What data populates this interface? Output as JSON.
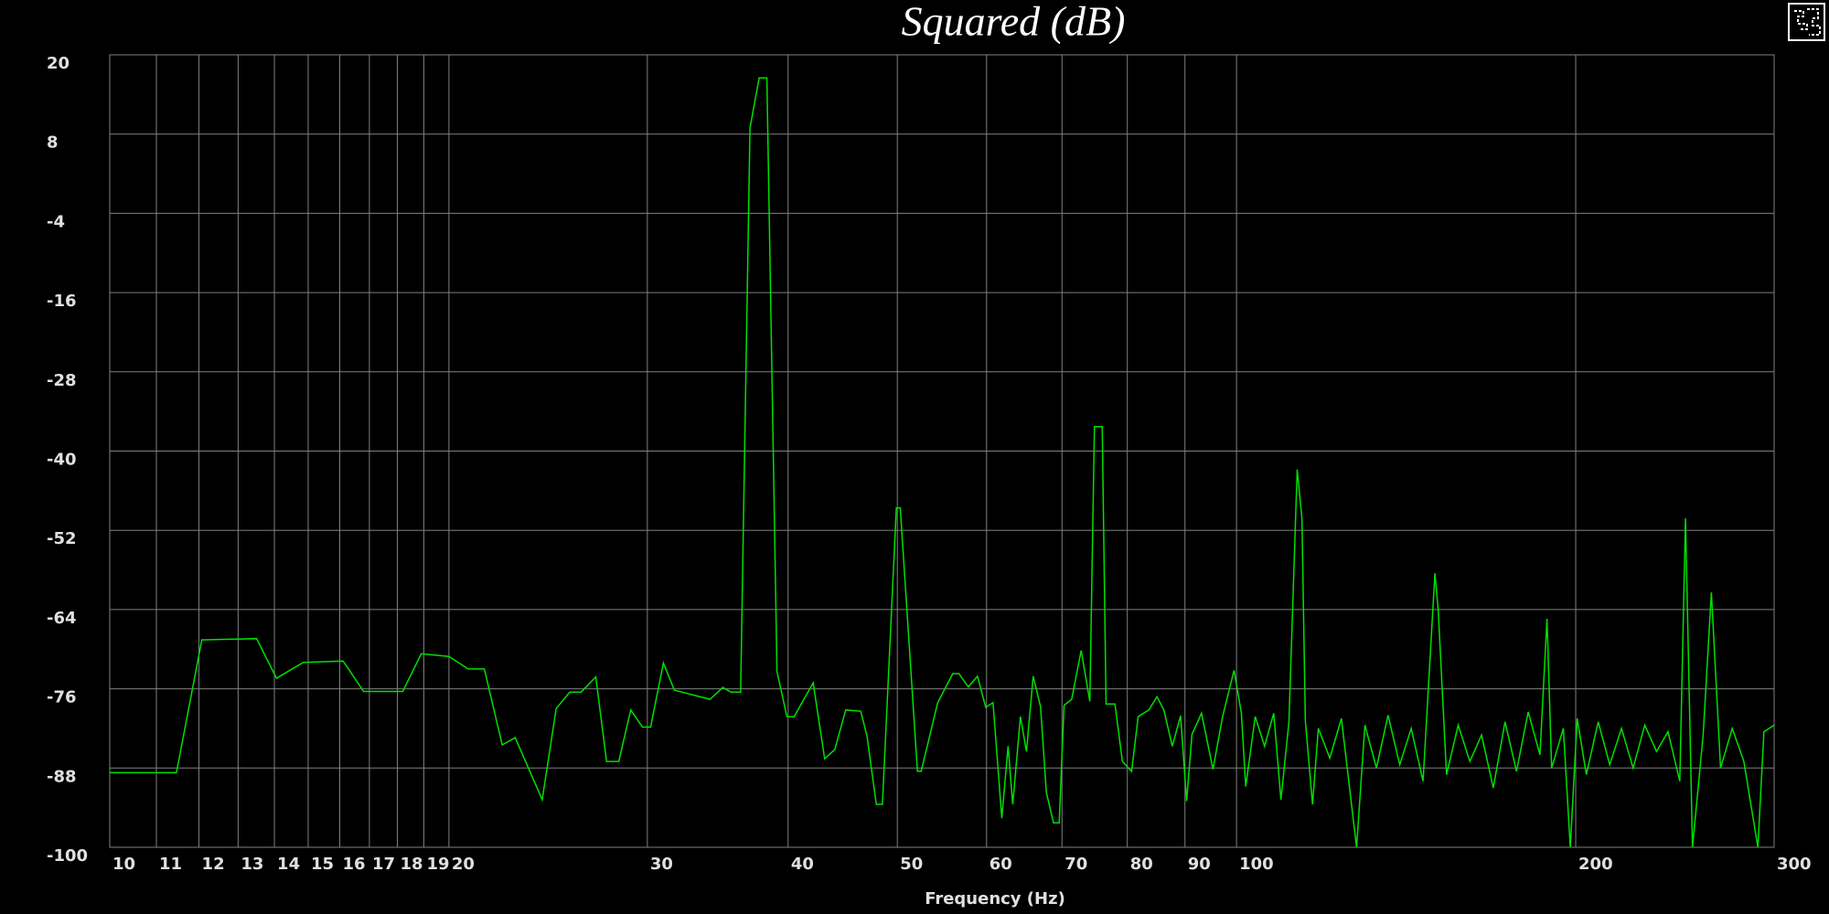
{
  "chart_data": {
    "type": "line",
    "title": "Squared (dB)",
    "x_label": "Frequency (Hz)",
    "x": [
      10,
      11.46,
      12.07,
      13.5,
      14.06,
      14.85,
      16.11,
      16.8,
      18.2,
      18.9,
      20.0,
      20.8,
      21.5,
      22.3,
      22.9,
      24.2,
      24.9,
      25.6,
      26.2,
      27.0,
      27.6,
      28.3,
      29.0,
      29.7,
      30.2,
      31.0,
      31.7,
      34.1,
      35.0,
      35.6,
      36.3,
      37.0,
      37.7,
      38.3,
      39.1,
      39.9,
      40.5,
      42.1,
      43.1,
      44.0,
      45.0,
      46.4,
      47.0,
      47.9,
      48.5,
      49.9,
      50.3,
      52.1,
      52.5,
      54.3,
      56.0,
      56.7,
      57.8,
      58.9,
      59.9,
      60.8,
      61.9,
      62.7,
      63.3,
      64.3,
      65.1,
      66.0,
      67.0,
      67.8,
      68.8,
      69.6,
      70.3,
      71.4,
      72.8,
      74.1,
      74.8,
      76.0,
      76.6,
      78.0,
      79.2,
      80.7,
      81.8,
      83.6,
      85.0,
      86.2,
      87.7,
      89.2,
      90.3,
      91.3,
      93.1,
      95.3,
      97.2,
      99.5,
      101.0,
      101.9,
      103.9,
      105.9,
      107.9,
      109.5,
      111.3,
      113.2,
      114.3,
      115.1,
      116.8,
      118.2,
      121.0,
      123.9,
      127.8,
      130.0,
      133.1,
      136.3,
      139.6,
      142.9,
      146.4,
      150.0,
      151.0,
      153.6,
      157.3,
      161.1,
      165.0,
      169.0,
      173.1,
      177.2,
      181.5,
      185.9,
      188.6,
      190.4,
      195.0,
      197.8,
      200.6,
      204.4,
      209.4,
      214.4,
      219.6,
      224.9,
      230.3,
      235.9,
      241.5,
      247.4,
      250.3,
      253.9,
      259.5,
      263.9,
      268.9,
      275.4,
      282.0,
      290.2,
      293.8,
      300
    ],
    "values": [
      -88.7,
      -88.7,
      -68.6,
      -68.4,
      -74.4,
      -72.0,
      -71.8,
      -76.4,
      -76.4,
      -70.7,
      -71.1,
      -73.0,
      -73.0,
      -84.5,
      -83.4,
      -92.8,
      -79.0,
      -76.5,
      -76.5,
      -74.2,
      -87.0,
      -87.0,
      -79.2,
      -81.8,
      -81.8,
      -72.1,
      -76.2,
      -77.6,
      -75.8,
      -76.5,
      -76.5,
      8.9,
      16.5,
      16.5,
      -73.4,
      -80.2,
      -80.2,
      -75.1,
      -86.6,
      -85.2,
      -79.2,
      -79.4,
      -83.2,
      -93.5,
      -93.5,
      -48.6,
      -48.6,
      -88.5,
      -88.5,
      -78.1,
      -73.7,
      -73.7,
      -75.7,
      -74.1,
      -78.8,
      -78.1,
      -95.6,
      -84.7,
      -93.5,
      -80.2,
      -85.5,
      -74.1,
      -78.7,
      -91.7,
      -96.3,
      -96.3,
      -78.5,
      -77.6,
      -70.2,
      -77.9,
      -36.3,
      -36.3,
      -78.3,
      -78.3,
      -87.0,
      -88.5,
      -80.2,
      -79.2,
      -77.2,
      -79.2,
      -84.7,
      -80.1,
      -93.0,
      -82.9,
      -79.7,
      -88.2,
      -80.2,
      -73.2,
      -79.7,
      -90.8,
      -80.2,
      -84.7,
      -79.7,
      -92.8,
      -81.1,
      -42.8,
      -50.2,
      -80.8,
      -93.5,
      -82.0,
      -86.5,
      -80.5,
      -100,
      -81.5,
      -88.0,
      -80.0,
      -87.5,
      -82.0,
      -90.0,
      -58.5,
      -64.0,
      -89.0,
      -81.5,
      -87.0,
      -83.0,
      -91.0,
      -81.0,
      -88.5,
      -79.5,
      -86.0,
      -65.4,
      -88.0,
      -82.0,
      -100,
      -80.5,
      -89.0,
      -81.0,
      -87.5,
      -82.0,
      -88.0,
      -81.5,
      -85.5,
      -82.5,
      -90.0,
      -50.2,
      -100,
      -83.0,
      -61.4,
      -88.0,
      -82.0,
      -87.0,
      -100,
      -82.5,
      -81.5
    ],
    "color": "#00e000",
    "grid_color": "#808080",
    "log_x": true,
    "grid": true,
    "xlim": [
      10,
      300
    ],
    "xticks": [
      10,
      11,
      12,
      13,
      14,
      15,
      16,
      17,
      18,
      19,
      20,
      30,
      40,
      50,
      60,
      70,
      80,
      90,
      100,
      200,
      300
    ],
    "ylim": [
      -100,
      20
    ],
    "yticks": [
      -100,
      -88,
      -76,
      -64,
      -52,
      -40,
      -28,
      -16,
      -4,
      8,
      20
    ]
  }
}
